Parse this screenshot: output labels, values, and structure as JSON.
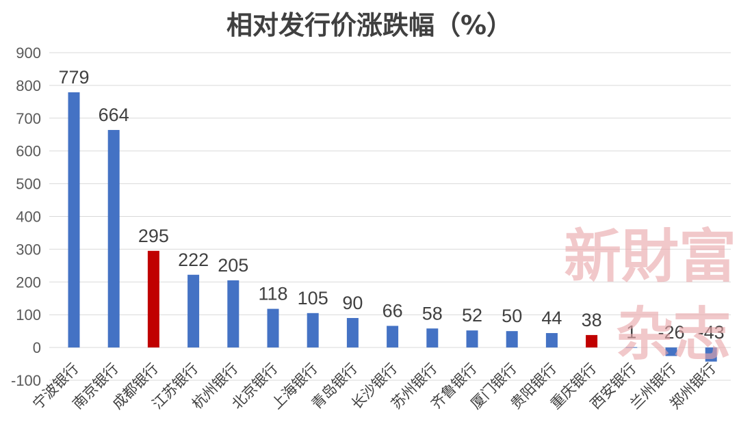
{
  "chart_data": {
    "type": "bar",
    "title": "相对发行价涨跌幅（%）",
    "xlabel": "",
    "ylabel": "",
    "ylim": [
      -100,
      900
    ],
    "yticks": [
      -100,
      0,
      100,
      200,
      300,
      400,
      500,
      600,
      700,
      800,
      900
    ],
    "grid": true,
    "legend": "none",
    "categories": [
      "宁波银行",
      "南京银行",
      "成都银行",
      "江苏银行",
      "杭州银行",
      "北京银行",
      "上海银行",
      "青岛银行",
      "长沙银行",
      "苏州银行",
      "齐鲁银行",
      "厦门银行",
      "贵阳银行",
      "重庆银行",
      "西安银行",
      "兰州银行",
      "郑州银行"
    ],
    "values": [
      779,
      664,
      295,
      222,
      205,
      118,
      105,
      90,
      66,
      58,
      52,
      50,
      44,
      38,
      1,
      -26,
      -43
    ],
    "highlight_indices": [
      2,
      13
    ],
    "colors": {
      "default": "#4472c4",
      "highlight": "#c00000"
    }
  },
  "watermark": {
    "line1": "新財富",
    "line2": "杂志",
    "color": "#e8a6a9"
  }
}
